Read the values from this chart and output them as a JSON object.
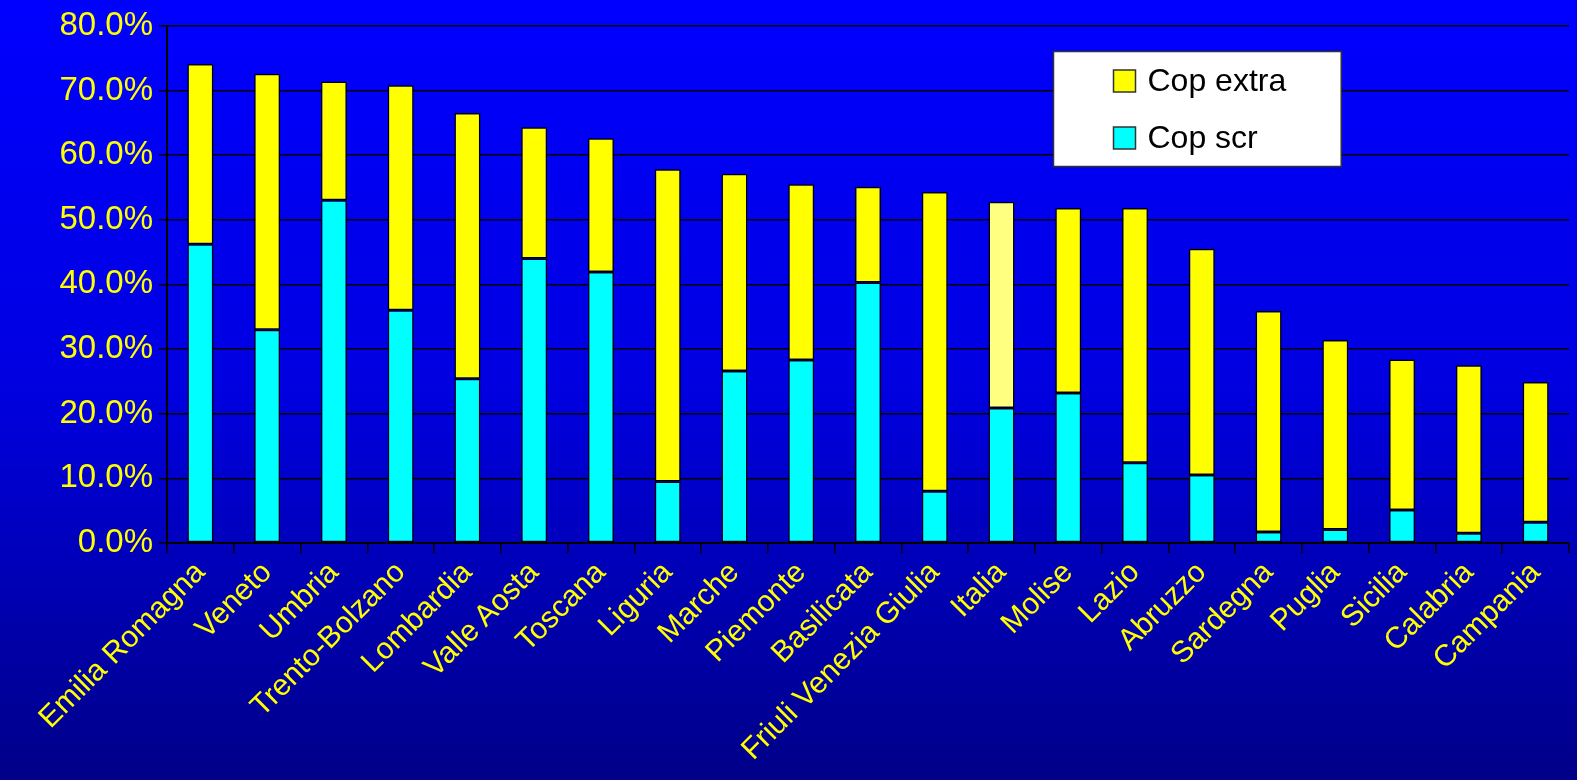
{
  "chart_data": {
    "type": "bar",
    "stacked": true,
    "categories": [
      "Emilia Romagna",
      "Veneto",
      "Umbria",
      "Trento-Bolzano",
      "Lombardia",
      "Valle Aosta",
      "Toscana",
      "Liguria",
      "Marche",
      "Piemonte",
      "Basilicata",
      "Friuli Venezia Giulia",
      "Italia",
      "Molise",
      "Lazio",
      "Abruzzo",
      "Sardegna",
      "Puglia",
      "Sicilia",
      "Calabria",
      "Campania"
    ],
    "series": [
      {
        "name": "Cop scr",
        "color": "#00ffff",
        "values": [
          46.2,
          33.0,
          53.0,
          36.0,
          25.4,
          44.0,
          41.9,
          9.5,
          26.6,
          28.3,
          40.3,
          8.0,
          20.9,
          23.2,
          12.4,
          10.5,
          1.7,
          2.1,
          5.1,
          1.5,
          3.2
        ]
      },
      {
        "name": "Cop extra",
        "color": "#ffff00",
        "colors": [
          "#ffff00",
          "#ffff00",
          "#ffff00",
          "#ffff00",
          "#ffff00",
          "#ffff00",
          "#ffff00",
          "#ffff00",
          "#ffff00",
          "#ffff00",
          "#ffff00",
          "#ffff00",
          "#ffff80",
          "#ffff00",
          "#ffff00",
          "#ffff00",
          "#ffff00",
          "#ffff00",
          "#ffff00",
          "#ffff00",
          "#ffff00"
        ],
        "values": [
          27.9,
          39.6,
          18.4,
          34.8,
          41.1,
          20.3,
          20.7,
          48.3,
          30.5,
          27.2,
          14.8,
          46.3,
          31.9,
          28.6,
          39.4,
          35.0,
          34.2,
          29.3,
          23.3,
          26.0,
          21.7
        ]
      }
    ],
    "ylim": [
      0,
      80
    ],
    "yticks": [
      {
        "value": 0,
        "label": "0.0%"
      },
      {
        "value": 10,
        "label": "10.0%"
      },
      {
        "value": 20,
        "label": "20.0%"
      },
      {
        "value": 30,
        "label": "30.0%"
      },
      {
        "value": 40,
        "label": "40.0%"
      },
      {
        "value": 50,
        "label": "50.0%"
      },
      {
        "value": 60,
        "label": "60.0%"
      },
      {
        "value": 70,
        "label": "70.0%"
      },
      {
        "value": 80,
        "label": "80.0%"
      }
    ],
    "grid": "y",
    "legend": "top right"
  }
}
